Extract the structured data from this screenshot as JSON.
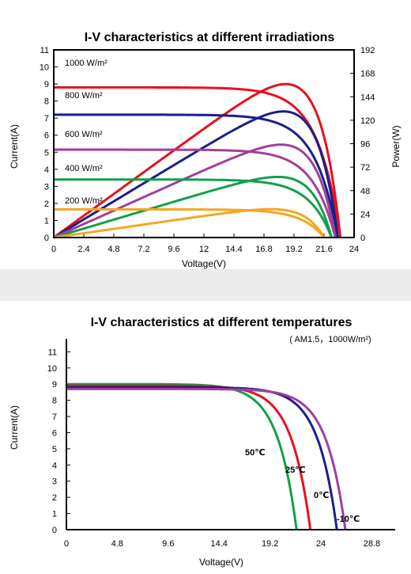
{
  "chart_data": [
    {
      "type": "line",
      "title": "I-V characteristics at different irradiations",
      "xlabel": "Voltage(V)",
      "ylabel": "Current(A)",
      "y2label": "Power(W)",
      "xlim": [
        0,
        24
      ],
      "ylim": [
        0,
        11
      ],
      "y2lim": [
        0,
        192
      ],
      "xticks": [
        "0",
        "2.4",
        "4.8",
        "7.2",
        "9.6",
        "12",
        "14.4",
        "16.8",
        "19.2",
        "21.6",
        "24"
      ],
      "yticks": [
        "0",
        "1",
        "2",
        "3",
        "4",
        "5",
        "6",
        "7",
        "8",
        "9",
        "10",
        "11"
      ],
      "y2ticks": [
        "0",
        "24",
        "48",
        "72",
        "96",
        "120",
        "144",
        "168",
        "192"
      ],
      "grid": false,
      "series": [
        {
          "name": "1000 W/m²",
          "color": "#e8101e",
          "isc": 8.8,
          "voc": 22.9,
          "vmp": 18.8,
          "pmax": 157
        },
        {
          "name": "800 W/m²",
          "color": "#1a1f8c",
          "isc": 7.2,
          "voc": 22.7,
          "vmp": 18.7,
          "pmax": 129
        },
        {
          "name": "600 W/m²",
          "color": "#a0409c",
          "isc": 5.15,
          "voc": 22.5,
          "vmp": 18.7,
          "pmax": 95
        },
        {
          "name": "400 W/m²",
          "color": "#13a04a",
          "isc": 3.4,
          "voc": 22.2,
          "vmp": 18.4,
          "pmax": 62
        },
        {
          "name": "200 W/m²",
          "color": "#f5a623",
          "isc": 1.65,
          "voc": 21.6,
          "vmp": 18.2,
          "pmax": 29
        }
      ],
      "annotations": [
        {
          "text": "1000 W/m²"
        },
        {
          "text": "800 W/m²"
        },
        {
          "text": "600 W/m²"
        },
        {
          "text": "400 W/m²"
        },
        {
          "text": "200 W/m²"
        }
      ]
    },
    {
      "type": "line",
      "title": "I-V characteristics at different temperatures",
      "subtitle": "( AM1.5，1000W/m²)",
      "xlabel": "Voltage(V)",
      "ylabel": "Current(A)",
      "xlim": [
        0,
        31
      ],
      "ylim": [
        0,
        11.8
      ],
      "xticks": [
        "0",
        "4.8",
        "9.6",
        "14.4",
        "19.2",
        "24",
        "28.8"
      ],
      "yticks": [
        "0",
        "1",
        "2",
        "3",
        "4",
        "5",
        "6",
        "7",
        "8",
        "9",
        "10",
        "11"
      ],
      "grid": false,
      "series": [
        {
          "name": "50℃",
          "color": "#13a04a",
          "isc": 9.0,
          "voc": 21.7
        },
        {
          "name": "25℃",
          "color": "#e8101e",
          "isc": 8.9,
          "voc": 23.0
        },
        {
          "name": "0℃",
          "color": "#1a1f8c",
          "isc": 8.8,
          "voc": 25.5
        },
        {
          "name": "-10℃",
          "color": "#a0409c",
          "isc": 8.7,
          "voc": 26.3
        }
      ]
    }
  ]
}
